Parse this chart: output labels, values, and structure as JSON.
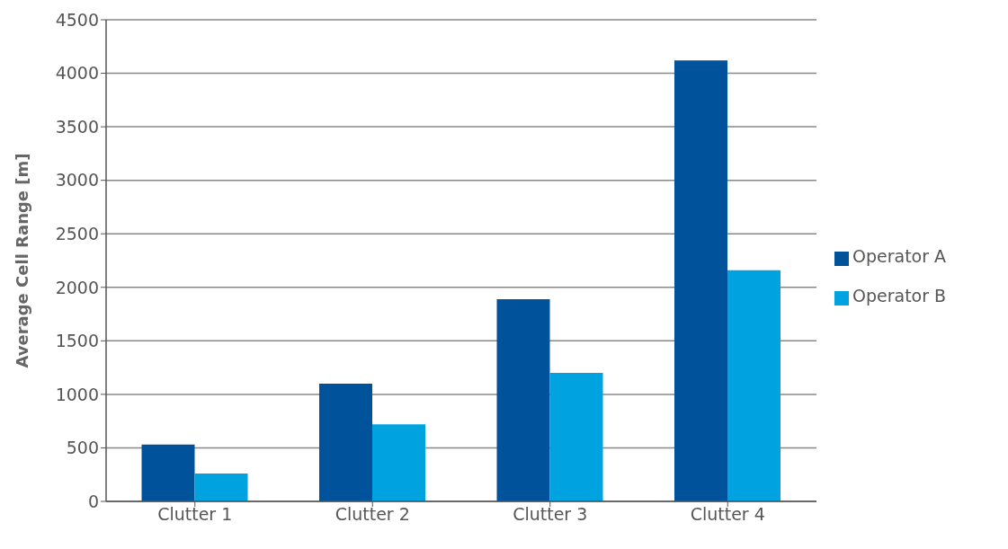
{
  "chart_data": {
    "type": "bar",
    "ylabel": "Average Cell Range [m]",
    "categories": [
      "Clutter 1",
      "Clutter 2",
      "Clutter 3",
      "Clutter 4"
    ],
    "series": [
      {
        "name": "Operator A",
        "color": "#00529b",
        "values": [
          530,
          1100,
          1890,
          4120
        ]
      },
      {
        "name": "Operator B",
        "color": "#00a3e0",
        "values": [
          260,
          720,
          1200,
          2160
        ]
      }
    ],
    "ylim": [
      0,
      4500
    ],
    "yticks": [
      0,
      500,
      1000,
      1500,
      2000,
      2500,
      3000,
      3500,
      4000,
      4500
    ],
    "grid": "y",
    "legend": "right"
  }
}
